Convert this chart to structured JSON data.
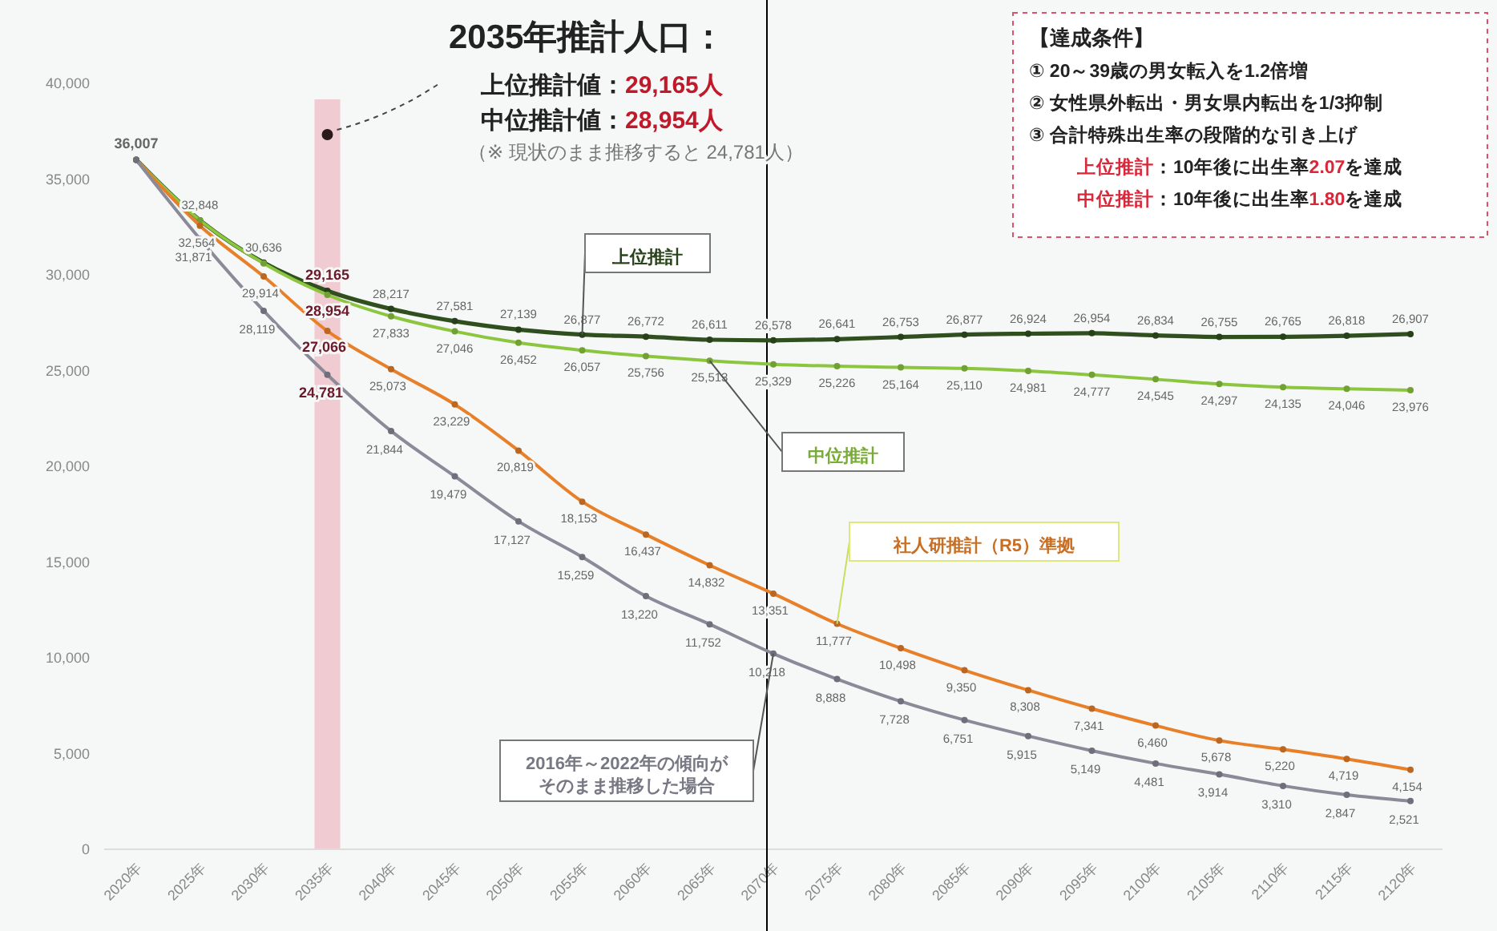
{
  "chart_data": {
    "type": "line",
    "title": "2035年推計人口：",
    "annotations": [
      "上位推計値：29,165人",
      "中位推計値：28,954人",
      "（※ 現状のまま推移すると 24,781人）",
      "【達成条件】",
      "① 20～39歳の男女転入を1.2倍増",
      "② 女性県外転出・男女県内転出を1/3抑制",
      "③ 合計特殊出生率の段階的な引き上げ",
      "上位推計：10年後に出生率2.07を達成",
      "中位推計：10年後に出生率1.80を達成"
    ],
    "categories": [
      "2020年",
      "2025年",
      "2030年",
      "2035年",
      "2040年",
      "2045年",
      "2050年",
      "2055年",
      "2060年",
      "2065年",
      "2070年",
      "2075年",
      "2080年",
      "2085年",
      "2090年",
      "2095年",
      "2100年",
      "2105年",
      "2110年",
      "2115年",
      "2120年"
    ],
    "series": [
      {
        "name": "上位推計",
        "color": "#2f4f1f",
        "values": [
          36007,
          32848,
          30636,
          29165,
          28217,
          27581,
          27139,
          26877,
          26772,
          26611,
          26578,
          26641,
          26753,
          26877,
          26924,
          26954,
          26834,
          26755,
          26765,
          26818,
          26907
        ],
        "value_labels": [
          "36,007",
          "32,848",
          "30,636",
          "29,165",
          "28,217",
          "27,581",
          "27,139",
          "26,877",
          "26,772",
          "26,611",
          "26,578",
          "26,641",
          "26,753",
          "26,877",
          "26,924",
          "26,954",
          "26,834",
          "26,755",
          "26,765",
          "26,818",
          "26,907"
        ]
      },
      {
        "name": "中位推計",
        "color": "#8cc63f",
        "values": [
          36007,
          32848,
          30600,
          28954,
          27833,
          27046,
          26452,
          26057,
          25756,
          25513,
          25329,
          25226,
          25164,
          25110,
          24981,
          24777,
          24545,
          24297,
          24135,
          24046,
          23976
        ],
        "value_labels": [
          null,
          null,
          null,
          "28,954",
          "27,833",
          "27,046",
          "26,452",
          "26,057",
          "25,756",
          "25,513",
          "25,329",
          "25,226",
          "25,164",
          "25,110",
          "24,981",
          "24,777",
          "24,545",
          "24,297",
          "24,135",
          "24,046",
          "23,976"
        ]
      },
      {
        "name": "社人研推計（R5）準拠",
        "color": "#e8802a",
        "values": [
          36007,
          32564,
          29914,
          27066,
          25073,
          23229,
          20819,
          18153,
          16437,
          14832,
          13351,
          11777,
          10498,
          9350,
          8308,
          7341,
          6460,
          5678,
          5220,
          4719,
          4154
        ],
        "value_labels": [
          null,
          "32,564",
          "29,914",
          "27,066",
          "25,073",
          "23,229",
          "20,819",
          "18,153",
          "16,437",
          "14,832",
          "13,351",
          "11,777",
          "10,498",
          "9,350",
          "8,308",
          "7,341",
          "6,460",
          "5,678",
          "5,220",
          "4,719",
          "4,154"
        ]
      },
      {
        "name": "2016年～2022年の傾向がそのまま推移した場合",
        "color": "#8a8a98",
        "values": [
          36007,
          31871,
          28119,
          24781,
          21844,
          19479,
          17127,
          15259,
          13220,
          11752,
          10218,
          8888,
          7728,
          6751,
          5915,
          5149,
          4481,
          3914,
          3310,
          2847,
          2521
        ],
        "value_labels": [
          null,
          "31,871",
          "28,119",
          "24,781",
          "21,844",
          "19,479",
          "17,127",
          "15,259",
          "13,220",
          "11,752",
          "10,218",
          "8,888",
          "7,728",
          "6,751",
          "5,915",
          "5,149",
          "4,481",
          "3,914",
          "3,310",
          "2,847",
          "2,521"
        ]
      }
    ],
    "ylim": [
      0,
      40000
    ],
    "yticks": [
      {
        "value": 0,
        "label": "0"
      },
      {
        "value": 5000,
        "label": "5,000"
      },
      {
        "value": 10000,
        "label": "10,000"
      },
      {
        "value": 15000,
        "label": "15,000"
      },
      {
        "value": 20000,
        "label": "20,000"
      },
      {
        "value": 25000,
        "label": "25,000"
      },
      {
        "value": 30000,
        "label": "30,000"
      },
      {
        "value": 35000,
        "label": "35,000"
      },
      {
        "value": 40000,
        "label": "40,000"
      }
    ],
    "bands": [
      {
        "axis": "x",
        "from": "2035年",
        "to": "2035年",
        "color": "#efc3cb"
      }
    ],
    "ref_lines": [
      {
        "axis": "x",
        "value": "2070年",
        "color": "#000000"
      }
    ],
    "marker": "circle",
    "line_style": "solid",
    "grid": false
  }
}
